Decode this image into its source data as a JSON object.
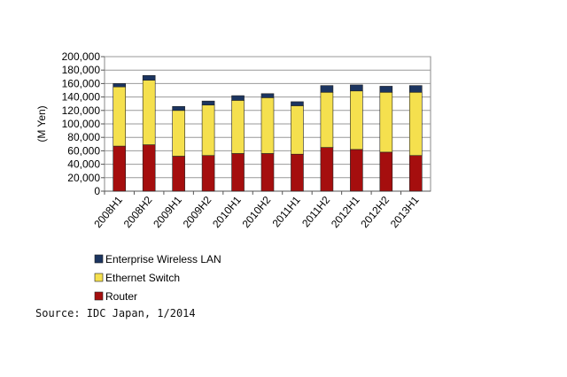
{
  "chart_data": {
    "type": "bar",
    "stacked": true,
    "categories": [
      "2008H1",
      "2008H2",
      "2009H1",
      "2009H2",
      "2010H1",
      "2010H2",
      "2011H1",
      "2011H2",
      "2012H1",
      "2012H2",
      "2013H1"
    ],
    "series": [
      {
        "name": "Router",
        "color": "#a50e0e",
        "values": [
          67000,
          69000,
          52000,
          53000,
          56000,
          56000,
          55000,
          65000,
          62000,
          58000,
          53000
        ]
      },
      {
        "name": "Ethernet Switch",
        "color": "#f5e04e",
        "values": [
          88000,
          96000,
          68000,
          75000,
          79000,
          83000,
          72000,
          82000,
          87000,
          89000,
          94000
        ]
      },
      {
        "name": "Enterprise Wireless LAN",
        "color": "#1c3560",
        "values": [
          5000,
          7000,
          6000,
          6000,
          7000,
          6000,
          6000,
          10000,
          9000,
          9000,
          10000
        ]
      }
    ],
    "ylabel": "(M Yen)",
    "xlabel": "",
    "ylim": [
      0,
      200000
    ],
    "yticks": [
      "0",
      "20,000",
      "40,000",
      "60,000",
      "80,000",
      "100,000",
      "120,000",
      "140,000",
      "160,000",
      "180,000",
      "200,000"
    ],
    "grid": true,
    "legend_placement": "bottom-left"
  },
  "source": "Source: IDC Japan, 1/2014"
}
